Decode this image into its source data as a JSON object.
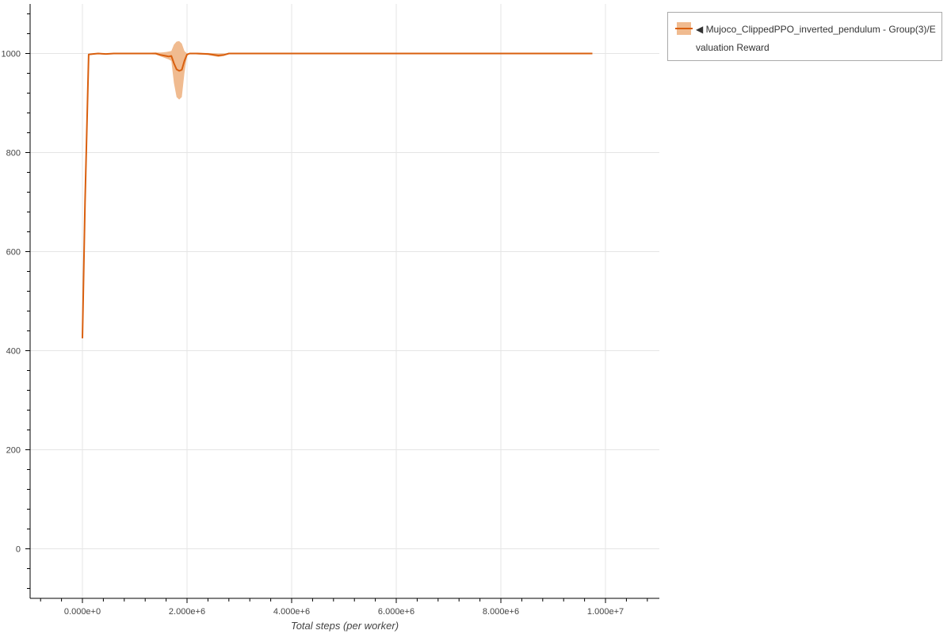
{
  "chart_data": {
    "type": "line",
    "title": "",
    "xlabel": "Total steps (per worker)",
    "ylabel": "",
    "xlim": [
      -1000000,
      11030000
    ],
    "ylim": [
      -100,
      1100
    ],
    "grid": true,
    "legend_placement": "outside-top-right",
    "x_ticks": [
      0,
      2000000,
      4000000,
      6000000,
      8000000,
      10000000
    ],
    "x_tick_labels": [
      "0.000e+0",
      "2.000e+6",
      "4.000e+6",
      "6.000e+6",
      "8.000e+6",
      "1.000e+7"
    ],
    "y_ticks": [
      0,
      200,
      400,
      600,
      800,
      1000
    ],
    "y_tick_labels": [
      "0",
      "200",
      "400",
      "600",
      "800",
      "1000"
    ],
    "series": [
      {
        "name": "◀ Mujoco_ClippedPPO_inverted_pendulum - Group(3)/Evaluation Reward",
        "color": "#d95f0e",
        "band_color": "#f0bb90",
        "x": [
          0,
          50000,
          120000,
          200000,
          300000,
          450000,
          600000,
          1000000,
          1400000,
          1500000,
          1600000,
          1650000,
          1700000,
          1750000,
          1800000,
          1850000,
          1900000,
          1950000,
          2000000,
          2050000,
          2200000,
          2400000,
          2600000,
          2700000,
          2800000,
          3000000,
          5000000,
          7000000,
          9750000
        ],
        "y": [
          425,
          700,
          998,
          999,
          1000,
          999,
          1000,
          1000,
          1000,
          997,
          995,
          994,
          995,
          980,
          968,
          965,
          967,
          985,
          998,
          1000,
          1000,
          999,
          996,
          997,
          1000,
          1000,
          1000,
          1000,
          1000
        ],
        "lower": [
          425,
          700,
          997,
          998,
          1000,
          998,
          1000,
          1000,
          998,
          994,
          990,
          988,
          985,
          940,
          912,
          907,
          912,
          960,
          995,
          1000,
          998,
          997,
          993,
          995,
          1000,
          1000,
          1000,
          1000,
          1000
        ],
        "upper": [
          425,
          700,
          999,
          1000,
          1000,
          1000,
          1000,
          1000,
          1002,
          1002,
          1003,
          1004,
          1005,
          1018,
          1024,
          1025,
          1020,
          1005,
          1000,
          1000,
          1001,
          1001,
          1000,
          1000,
          1000,
          1000,
          1000,
          1000,
          1000
        ]
      }
    ]
  }
}
